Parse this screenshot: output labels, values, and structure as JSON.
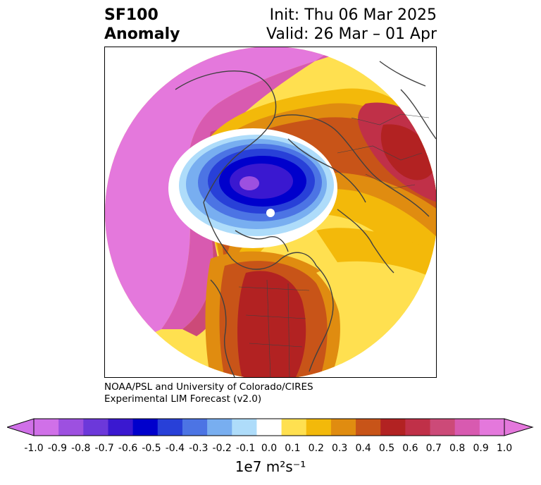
{
  "header": {
    "title_line1": "SF100",
    "title_line2": "Anomaly",
    "init": "Init: Thu 06 Mar 2025",
    "valid": "Valid: 26 Mar – 01 Apr"
  },
  "credit": {
    "line1": "NOAA/PSL and University of Colorado/CIRES",
    "line2": "Experimental LIM Forecast (v2.0)"
  },
  "colorbar": {
    "tick_labels": [
      "-1.0",
      "-0.9",
      "-0.8",
      "-0.7",
      "-0.6",
      "-0.5",
      "-0.4",
      "-0.3",
      "-0.2",
      "-0.1",
      "0.0",
      "0.1",
      "0.2",
      "0.3",
      "0.4",
      "0.5",
      "0.6",
      "0.7",
      "0.8",
      "0.9",
      "1.0"
    ],
    "unit_label": "1e7 m²s⁻¹",
    "colors": [
      "#d070e8",
      "#9d50e0",
      "#6c38da",
      "#3a18d0",
      "#0000cc",
      "#2840d8",
      "#4c74e4",
      "#78aef0",
      "#aedcfa",
      "#ffffff",
      "#ffe050",
      "#f3b90a",
      "#e08c10",
      "#c85418",
      "#b22222",
      "#c03048",
      "#cc4a78",
      "#d85ab0",
      "#e478dc"
    ],
    "extend_low": "#d070e8",
    "extend_high": "#e478dc"
  },
  "map": {
    "field": "SF100 anomaly",
    "projection": "north polar stereographic"
  }
}
